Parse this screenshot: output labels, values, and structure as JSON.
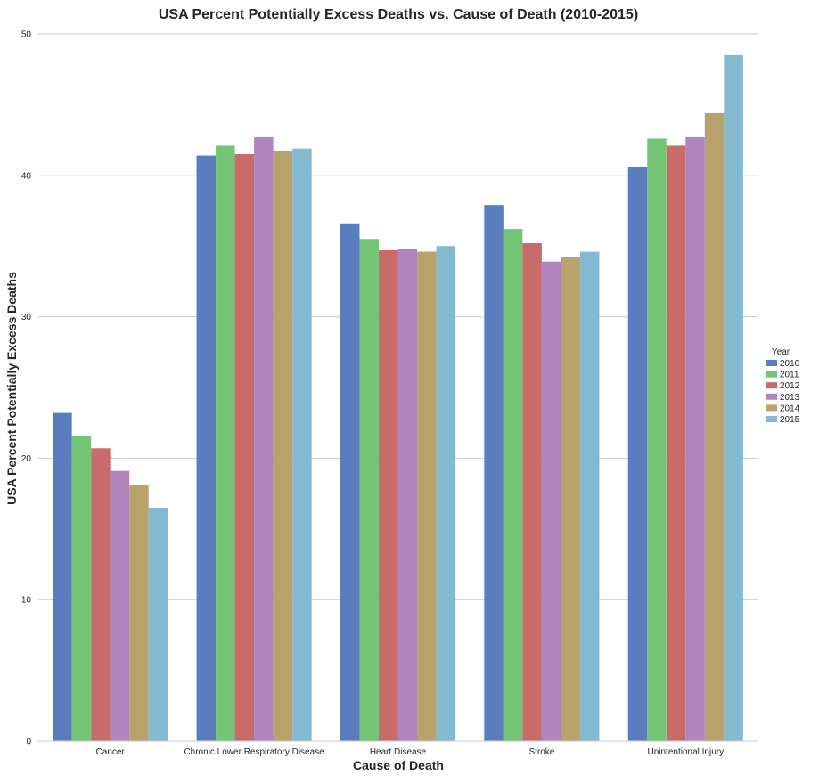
{
  "chart_data": {
    "type": "bar",
    "title": "USA Percent Potentially Excess Deaths vs. Cause of Death (2010-2015)",
    "xlabel": "Cause of Death",
    "ylabel": "USA Percent Potentially Excess Deaths",
    "ylim": [
      0,
      50
    ],
    "yticks": [
      0,
      10,
      20,
      30,
      40,
      50
    ],
    "grid": "horizontal",
    "legend": {
      "title": "Year",
      "placement": "right"
    },
    "categories": [
      "Cancer",
      "Chronic Lower Respiratory Disease",
      "Heart Disease",
      "Stroke",
      "Unintentional Injury"
    ],
    "series": [
      {
        "name": "2010",
        "color": "#5a7dc0",
        "values": [
          23.2,
          41.4,
          36.6,
          37.9,
          40.6
        ]
      },
      {
        "name": "2011",
        "color": "#74c476",
        "values": [
          21.6,
          42.1,
          35.5,
          36.2,
          42.6
        ]
      },
      {
        "name": "2012",
        "color": "#c96b6b",
        "values": [
          20.7,
          41.5,
          34.7,
          35.2,
          42.1
        ]
      },
      {
        "name": "2013",
        "color": "#b283bd",
        "values": [
          19.1,
          42.7,
          34.8,
          33.9,
          42.7
        ]
      },
      {
        "name": "2014",
        "color": "#b9a26e",
        "values": [
          18.1,
          41.7,
          34.6,
          34.2,
          44.4
        ]
      },
      {
        "name": "2015",
        "color": "#85b9d0",
        "values": [
          16.5,
          41.9,
          35.0,
          34.6,
          48.5
        ]
      }
    ]
  }
}
